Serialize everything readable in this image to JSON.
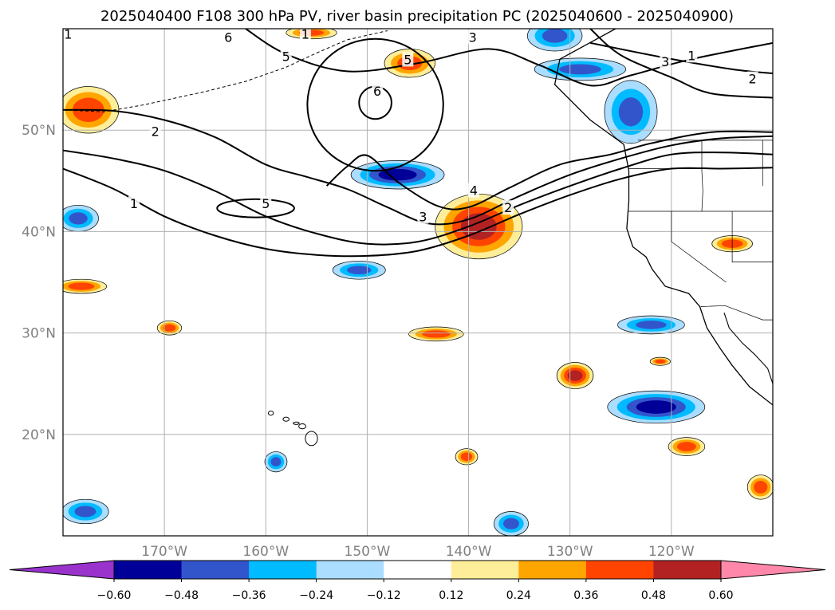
{
  "title": "2025040400 F108 300 hPa PV, river basin precipitation PC (2025040600 - 2025040900)",
  "chart_data": {
    "type": "heatmap",
    "title": "2025040400 F108 300 hPa PV, river basin precipitation PC (2025040600 - 2025040900)",
    "projection": "PlateCarree",
    "grid": true,
    "xlim": [
      -180,
      -110
    ],
    "ylim": [
      10,
      60
    ],
    "x_ticks": [
      {
        "value": -170,
        "label": "170°W"
      },
      {
        "value": -160,
        "label": "160°W"
      },
      {
        "value": -150,
        "label": "150°W"
      },
      {
        "value": -140,
        "label": "140°W"
      },
      {
        "value": -130,
        "label": "130°W"
      },
      {
        "value": -120,
        "label": "120°W"
      }
    ],
    "y_ticks": [
      {
        "value": 20,
        "label": "20°N"
      },
      {
        "value": 30,
        "label": "30°N"
      },
      {
        "value": 40,
        "label": "40°N"
      },
      {
        "value": 50,
        "label": "50°N"
      }
    ],
    "colorbar": {
      "orientation": "horizontal",
      "extend": "both",
      "levels": [
        -0.6,
        -0.48,
        -0.36,
        -0.24,
        -0.12,
        0.12,
        0.24,
        0.36,
        0.48,
        0.6
      ],
      "tick_labels": [
        "−0.60",
        "−0.48",
        "−0.36",
        "−0.24",
        "−0.12",
        "0.12",
        "0.24",
        "0.36",
        "0.48",
        "0.60"
      ],
      "colors": [
        "#9933cc",
        "#000099",
        "#3355cc",
        "#00bbff",
        "#aaddff",
        "#ffffff",
        "#ffee99",
        "#ffa500",
        "#ff4400",
        "#b22222",
        "#ff88aa"
      ]
    },
    "pv_contours": [
      {
        "level": 1,
        "points": [
          [
            -180,
            46.2
          ],
          [
            -175,
            44.2
          ],
          [
            -170,
            41.5
          ],
          [
            -165,
            39.6
          ],
          [
            -160,
            38.3
          ],
          [
            -155,
            37.7
          ],
          [
            -150,
            37.6
          ],
          [
            -145,
            38.1
          ],
          [
            -140,
            39.6
          ],
          [
            -135,
            41.7
          ],
          [
            -130,
            43.6
          ],
          [
            -125,
            45.2
          ],
          [
            -120,
            46.2
          ],
          [
            -115,
            46.2
          ],
          [
            -110,
            46.3
          ]
        ]
      },
      {
        "level": 2,
        "points": [
          [
            -180,
            48.0
          ],
          [
            -175,
            47.2
          ],
          [
            -170,
            46.0
          ],
          [
            -165,
            44.0
          ],
          [
            -160,
            41.5
          ],
          [
            -155,
            39.8
          ],
          [
            -150,
            38.8
          ],
          [
            -145,
            39.0
          ],
          [
            -140,
            40.5
          ],
          [
            -135,
            42.6
          ],
          [
            -130,
            44.5
          ],
          [
            -125,
            46.2
          ],
          [
            -120,
            47.6
          ],
          [
            -115,
            47.8
          ],
          [
            -110,
            47.6
          ]
        ]
      },
      {
        "level": 3,
        "points": [
          [
            -180,
            52.0
          ],
          [
            -175,
            51.9
          ],
          [
            -170,
            51.0
          ],
          [
            -165,
            49.3
          ],
          [
            -160,
            46.6
          ],
          [
            -156,
            45.4
          ],
          [
            -152,
            44.2
          ],
          [
            -148,
            42.4
          ],
          [
            -144,
            40.8
          ],
          [
            -140,
            41.2
          ],
          [
            -135,
            43.5
          ],
          [
            -130,
            45.6
          ],
          [
            -125,
            47.2
          ],
          [
            -120,
            48.5
          ],
          [
            -115,
            49.2
          ],
          [
            -110,
            49.4
          ]
        ]
      },
      {
        "level": 4,
        "points": [
          [
            -154,
            44.5
          ],
          [
            -152,
            46.4
          ],
          [
            -150,
            47.5
          ],
          [
            -147,
            44.9
          ],
          [
            -143,
            42.5
          ],
          [
            -140,
            42.4
          ],
          [
            -136,
            44.3
          ],
          [
            -131,
            46.6
          ],
          [
            -126,
            47.6
          ],
          [
            -122,
            48.7
          ],
          [
            -116,
            49.8
          ],
          [
            -110,
            49.8
          ]
        ]
      },
      {
        "level": 1,
        "points": [
          [
            -162,
            60
          ],
          [
            -158,
            57.5
          ],
          [
            -152,
            55.8
          ],
          [
            -145,
            56.6
          ],
          [
            -138,
            58.0
          ],
          [
            -133,
            56.4
          ],
          [
            -128,
            54.4
          ],
          [
            -124,
            55.4
          ],
          [
            -118,
            57.0
          ],
          [
            -110,
            58.6
          ]
        ]
      },
      {
        "level": 2,
        "points": [
          [
            -128,
            58.6
          ],
          [
            -121,
            57.2
          ],
          [
            -114,
            56.0
          ],
          [
            -110,
            55.6
          ]
        ]
      },
      {
        "level": 3,
        "points": [
          [
            -128,
            60
          ],
          [
            -125,
            57.4
          ],
          [
            -120,
            55.2
          ],
          [
            -116,
            53.6
          ],
          [
            -110,
            53.2
          ]
        ]
      }
    ],
    "pv_closed_contours": [
      {
        "level": 6,
        "center": [
          -149.2,
          52.7
        ],
        "rx": 1.6,
        "ry": 1.6
      },
      {
        "level": 5,
        "center": [
          -149.2,
          52.5
        ],
        "rx": 6.7,
        "ry": 6.5
      },
      {
        "level": 5,
        "center": [
          -161.0,
          42.3
        ],
        "rx": 3.8,
        "ry": 0.9
      }
    ],
    "pv_labels": [
      {
        "value": "1",
        "x": -179.5,
        "y": 59.4
      },
      {
        "value": "6",
        "x": -163.7,
        "y": 59.1
      },
      {
        "value": "1",
        "x": -156.1,
        "y": 59.4
      },
      {
        "value": "5",
        "x": -158.0,
        "y": 57.2
      },
      {
        "value": "5",
        "x": -146.0,
        "y": 56.9
      },
      {
        "value": "6",
        "x": -149.0,
        "y": 53.8
      },
      {
        "value": "2",
        "x": -170.9,
        "y": 49.8
      },
      {
        "value": "5",
        "x": -160.0,
        "y": 42.7
      },
      {
        "value": "1",
        "x": -173.0,
        "y": 42.7
      },
      {
        "value": "4",
        "x": -139.5,
        "y": 44.0
      },
      {
        "value": "3",
        "x": -144.5,
        "y": 41.4
      },
      {
        "value": "2",
        "x": -136.1,
        "y": 42.3
      },
      {
        "value": "3",
        "x": -139.6,
        "y": 59.1
      },
      {
        "value": "1",
        "x": -118.0,
        "y": 57.3
      },
      {
        "value": "2",
        "x": -112.0,
        "y": 55.0
      },
      {
        "value": "3",
        "x": -120.6,
        "y": 56.7
      }
    ],
    "precip_pc_regions": [
      {
        "center": [
          -177.5,
          52.0
        ],
        "rx": 3.0,
        "ry": 2.3,
        "value": 0.42
      },
      {
        "center": [
          -178.5,
          41.3
        ],
        "rx": 2.0,
        "ry": 1.3,
        "value": -0.38
      },
      {
        "center": [
          -178.2,
          34.6
        ],
        "rx": 2.5,
        "ry": 0.7,
        "value": 0.42
      },
      {
        "center": [
          -169.5,
          30.5
        ],
        "rx": 1.2,
        "ry": 0.7,
        "value": 0.42
      },
      {
        "center": [
          -159.0,
          17.3
        ],
        "rx": 1.1,
        "ry": 1.0,
        "value": -0.38
      },
      {
        "center": [
          -177.8,
          12.4
        ],
        "rx": 2.3,
        "ry": 1.2,
        "value": -0.38
      },
      {
        "center": [
          -155.5,
          59.6
        ],
        "rx": 2.5,
        "ry": 0.6,
        "value": 0.4
      },
      {
        "center": [
          -145.8,
          56.6
        ],
        "rx": 2.5,
        "ry": 1.4,
        "value": 0.4
      },
      {
        "center": [
          -131.5,
          59.3
        ],
        "rx": 2.7,
        "ry": 1.5,
        "value": -0.38
      },
      {
        "center": [
          -129.0,
          56.0
        ],
        "rx": 4.5,
        "ry": 1.1,
        "value": -0.38
      },
      {
        "center": [
          -124.0,
          51.8
        ],
        "rx": 2.6,
        "ry": 3.1,
        "value": -0.38
      },
      {
        "center": [
          -147.0,
          45.6
        ],
        "rx": 4.6,
        "ry": 1.4,
        "value": -0.5
      },
      {
        "center": [
          -139.0,
          40.5
        ],
        "rx": 4.3,
        "ry": 3.2,
        "value": 0.5
      },
      {
        "center": [
          -150.8,
          36.2
        ],
        "rx": 2.6,
        "ry": 0.9,
        "value": -0.38
      },
      {
        "center": [
          -143.2,
          29.9
        ],
        "rx": 2.7,
        "ry": 0.7,
        "value": 0.42
      },
      {
        "center": [
          -140.2,
          17.8
        ],
        "rx": 1.1,
        "ry": 0.8,
        "value": 0.42
      },
      {
        "center": [
          -135.8,
          11.2
        ],
        "rx": 1.7,
        "ry": 1.2,
        "value": -0.38
      },
      {
        "center": [
          -129.5,
          25.8
        ],
        "rx": 1.8,
        "ry": 1.3,
        "value": 0.5
      },
      {
        "center": [
          -122.0,
          30.8
        ],
        "rx": 3.3,
        "ry": 0.9,
        "value": -0.38
      },
      {
        "center": [
          -121.1,
          27.2
        ],
        "rx": 1.0,
        "ry": 0.4,
        "value": 0.42
      },
      {
        "center": [
          -121.5,
          22.7
        ],
        "rx": 4.8,
        "ry": 1.6,
        "value": -0.5
      },
      {
        "center": [
          -118.5,
          18.8
        ],
        "rx": 1.8,
        "ry": 0.9,
        "value": 0.42
      },
      {
        "center": [
          -114.0,
          38.8
        ],
        "rx": 2.0,
        "ry": 0.8,
        "value": 0.42
      },
      {
        "center": [
          -111.2,
          14.8
        ],
        "rx": 1.3,
        "ry": 1.2,
        "value": 0.42
      }
    ]
  }
}
